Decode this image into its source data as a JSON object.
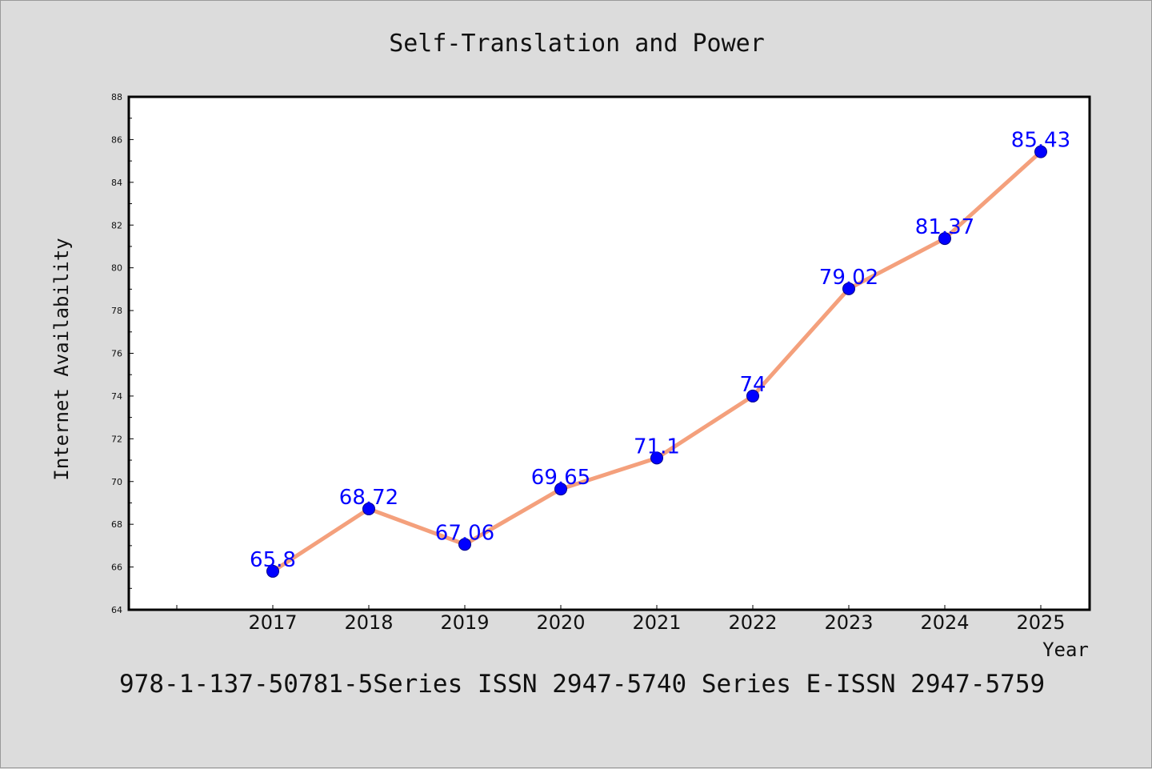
{
  "chart_data": {
    "type": "line",
    "title": "Self-Translation and Power",
    "xlabel": "Year",
    "ylabel": "Internet Availability",
    "categories": [
      "2017",
      "2018",
      "2019",
      "2020",
      "2021",
      "2022",
      "2023",
      "2024",
      "2025"
    ],
    "series": [
      {
        "values": [
          65.8,
          68.72,
          67.06,
          69.65,
          71.1,
          74,
          79.02,
          81.37,
          85.43
        ],
        "labels": [
          "65.8",
          "68.72",
          "67.06",
          "69.65",
          "71.1",
          "74",
          "79.02",
          "81.37",
          "85.43"
        ]
      }
    ],
    "ylim": [
      64,
      88
    ],
    "yticks": [
      64,
      66,
      68,
      70,
      72,
      74,
      76,
      78,
      80,
      82,
      84,
      86,
      88
    ],
    "grid": false,
    "colors": {
      "line": "#f4a07c",
      "marker": "#0000ff",
      "label": "#0000ff",
      "background": "#dcdcdc",
      "plot_background": "#ffffff"
    }
  },
  "footer": "978-1-137-50781-5Series ISSN 2947-5740 Series E-ISSN 2947-5759"
}
